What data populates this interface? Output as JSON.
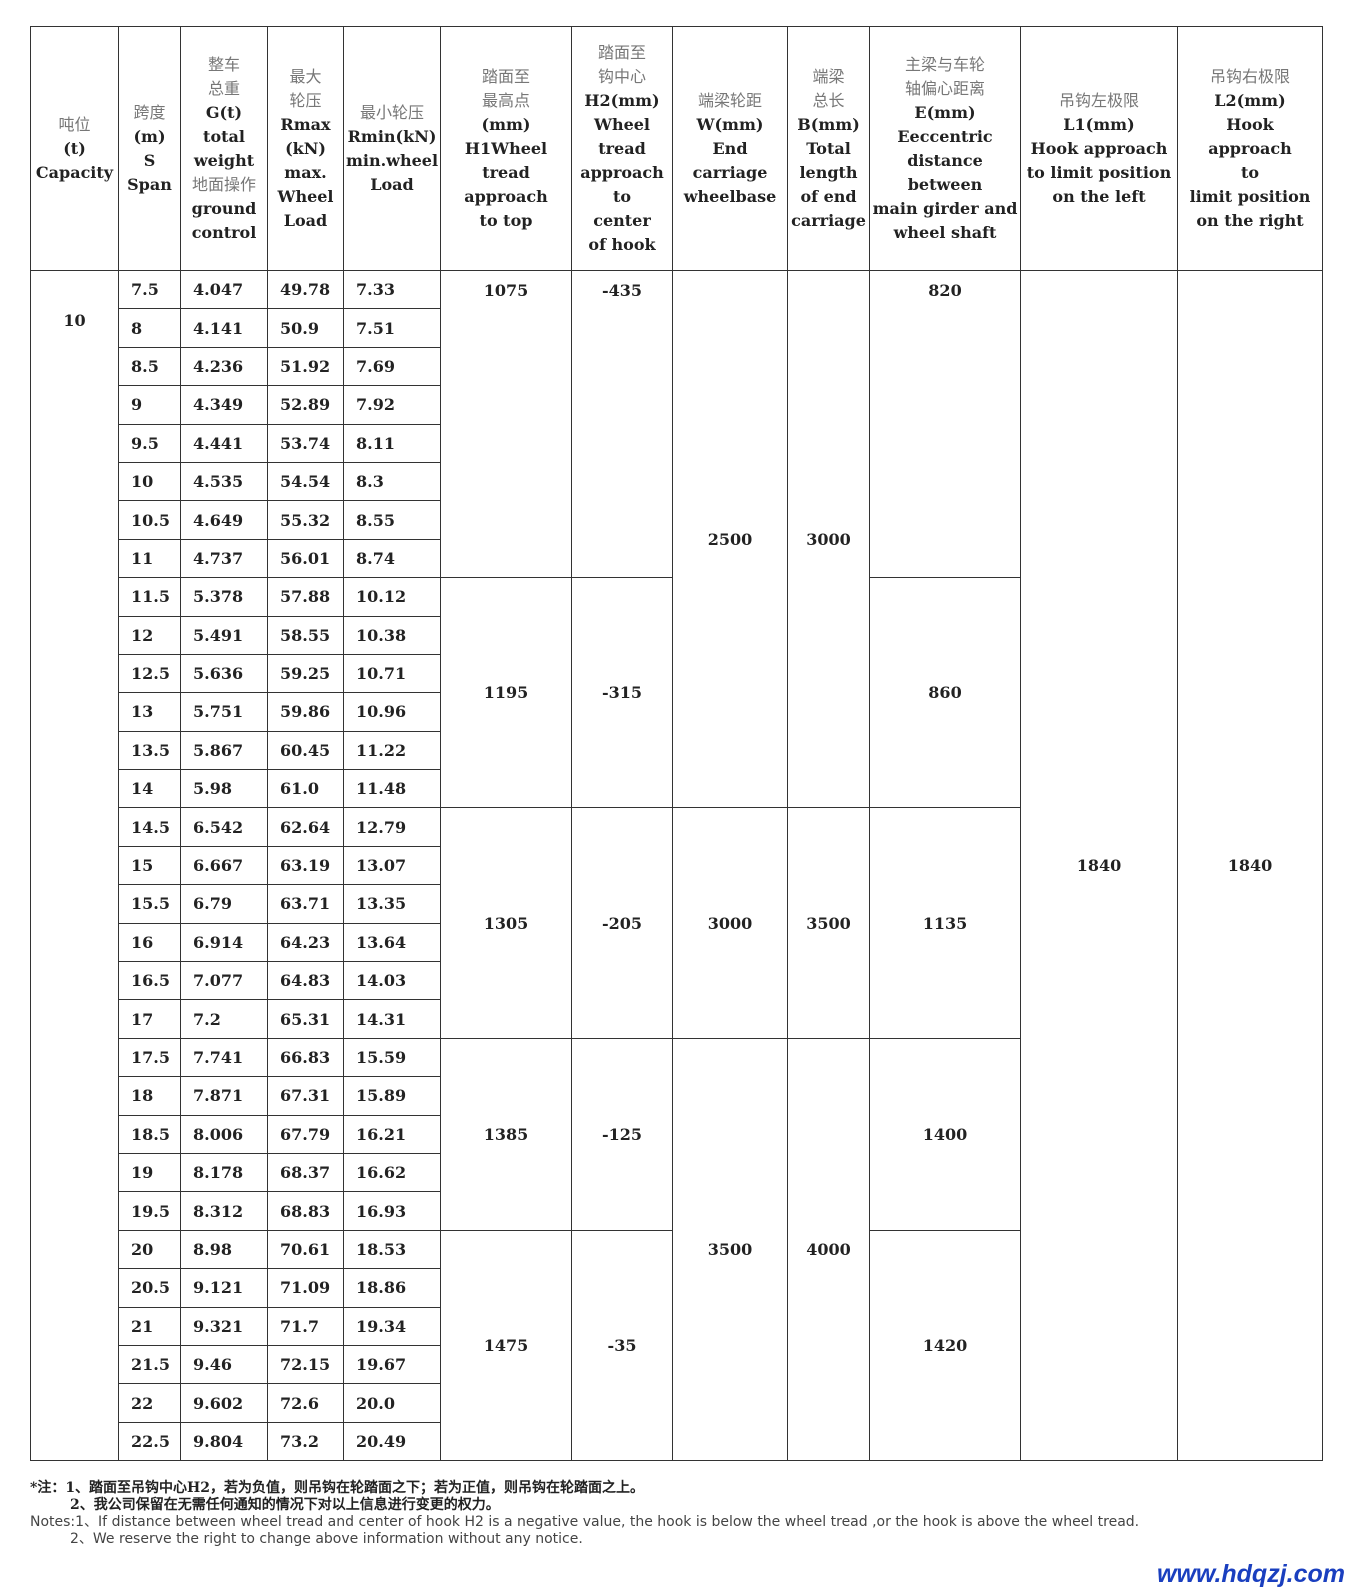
{
  "headers": [
    {
      "zh": "吨位",
      "en": "(t)\nCapacity"
    },
    {
      "zh": "跨度",
      "en": "(m)\nS\nSpan"
    },
    {
      "zh": "整车\n总重",
      "en": "G(t)\ntotal\nweight",
      "zh2": "地面操作",
      "en2": "ground\ncontrol"
    },
    {
      "zh": "最大\n轮压",
      "en": "Rmax\n(kN)\nmax.\nWheel\nLoad"
    },
    {
      "zh": "最小轮压",
      "en": "Rmin(kN)\nmin.wheel\nLoad"
    },
    {
      "zh": "踏面至\n最高点",
      "en": "(mm)\nH1Wheel\ntread approach\nto top"
    },
    {
      "zh": "踏面至\n钩中心",
      "en": "H2(mm)\nWheel\ntread\napproach\nto\ncenter\nof hook"
    },
    {
      "zh": "端梁轮距",
      "en": "W(mm)\nEnd carriage\nwheelbase"
    },
    {
      "zh": "端梁\n总长",
      "en": "B(mm)\nTotal\nlength\nof end\ncarriage"
    },
    {
      "zh": "主梁与车轮\n轴偏心距离",
      "en": "E(mm)\nEeccentric\ndistance between\nmain girder and\nwheel shaft"
    },
    {
      "zh": "吊钩左极限",
      "en": "L1(mm)\nHook approach\nto limit position\non the left"
    },
    {
      "zh": "吊钩右极限",
      "en": "L2(mm)\nHook\napproach\nto\nlimit position\non the right"
    }
  ],
  "capacity": "10",
  "rows": [
    [
      "7.5",
      "4.047",
      "49.78",
      "7.33"
    ],
    [
      "8",
      "4.141",
      "50.9",
      "7.51"
    ],
    [
      "8.5",
      "4.236",
      "51.92",
      "7.69"
    ],
    [
      "9",
      "4.349",
      "52.89",
      "7.92"
    ],
    [
      "9.5",
      "4.441",
      "53.74",
      "8.11"
    ],
    [
      "10",
      "4.535",
      "54.54",
      "8.3"
    ],
    [
      "10.5",
      "4.649",
      "55.32",
      "8.55"
    ],
    [
      "11",
      "4.737",
      "56.01",
      "8.74"
    ],
    [
      "11.5",
      "5.378",
      "57.88",
      "10.12"
    ],
    [
      "12",
      "5.491",
      "58.55",
      "10.38"
    ],
    [
      "12.5",
      "5.636",
      "59.25",
      "10.71"
    ],
    [
      "13",
      "5.751",
      "59.86",
      "10.96"
    ],
    [
      "13.5",
      "5.867",
      "60.45",
      "11.22"
    ],
    [
      "14",
      "5.98",
      "61.0",
      "11.48"
    ],
    [
      "14.5",
      "6.542",
      "62.64",
      "12.79"
    ],
    [
      "15",
      "6.667",
      "63.19",
      "13.07"
    ],
    [
      "15.5",
      "6.79",
      "63.71",
      "13.35"
    ],
    [
      "16",
      "6.914",
      "64.23",
      "13.64"
    ],
    [
      "16.5",
      "7.077",
      "64.83",
      "14.03"
    ],
    [
      "17",
      "7.2",
      "65.31",
      "14.31"
    ],
    [
      "17.5",
      "7.741",
      "66.83",
      "15.59"
    ],
    [
      "18",
      "7.871",
      "67.31",
      "15.89"
    ],
    [
      "18.5",
      "8.006",
      "67.79",
      "16.21"
    ],
    [
      "19",
      "8.178",
      "68.37",
      "16.62"
    ],
    [
      "19.5",
      "8.312",
      "68.83",
      "16.93"
    ],
    [
      "20",
      "8.98",
      "70.61",
      "18.53"
    ],
    [
      "20.5",
      "9.121",
      "71.09",
      "18.86"
    ],
    [
      "21",
      "9.321",
      "71.7",
      "19.34"
    ],
    [
      "21.5",
      "9.46",
      "72.15",
      "19.67"
    ],
    [
      "22",
      "9.602",
      "72.6",
      "20.0"
    ],
    [
      "22.5",
      "9.804",
      "73.2",
      "20.49"
    ]
  ],
  "h1_groups": [
    {
      "start": 0,
      "span": 8,
      "value": "1075"
    },
    {
      "start": 8,
      "span": 6,
      "value": "1195"
    },
    {
      "start": 14,
      "span": 6,
      "value": "1305"
    },
    {
      "start": 20,
      "span": 5,
      "value": "1385"
    },
    {
      "start": 25,
      "span": 6,
      "value": "1475"
    }
  ],
  "h2_groups": [
    {
      "start": 0,
      "span": 8,
      "value": "-435"
    },
    {
      "start": 8,
      "span": 6,
      "value": "-315"
    },
    {
      "start": 14,
      "span": 6,
      "value": "-205"
    },
    {
      "start": 20,
      "span": 5,
      "value": "-125"
    },
    {
      "start": 25,
      "span": 6,
      "value": "-35"
    }
  ],
  "w_groups": [
    {
      "start": 0,
      "span": 14,
      "value": "2500"
    },
    {
      "start": 14,
      "span": 6,
      "value": "3000"
    },
    {
      "start": 20,
      "span": 11,
      "value": "3500"
    }
  ],
  "b_groups": [
    {
      "start": 0,
      "span": 14,
      "value": "3000"
    },
    {
      "start": 14,
      "span": 6,
      "value": "3500"
    },
    {
      "start": 20,
      "span": 11,
      "value": "4000"
    }
  ],
  "e_groups": [
    {
      "start": 0,
      "span": 8,
      "value": "820"
    },
    {
      "start": 8,
      "span": 6,
      "value": "860"
    },
    {
      "start": 14,
      "span": 6,
      "value": "1135"
    },
    {
      "start": 20,
      "span": 5,
      "value": "1400"
    },
    {
      "start": 25,
      "span": 6,
      "value": "1420"
    }
  ],
  "l1": "1840",
  "l2": "1840",
  "notes": {
    "zh1": "*注：1、踏面至吊钩中心H2，若为负值，则吊钩在轮踏面之下；若为正值，则吊钩在轮踏面之上。",
    "zh2": "2、我公司保留在无需任何通知的情况下对以上信息进行变更的权力。",
    "en1": "Notes:1、If distance between wheel tread and center of hook H2 is a negative value, the hook is below the wheel tread ,or the hook is above the wheel tread.",
    "en2": "2、We reserve the right to change above information without any notice."
  },
  "watermark": "www.hdqzj.com"
}
